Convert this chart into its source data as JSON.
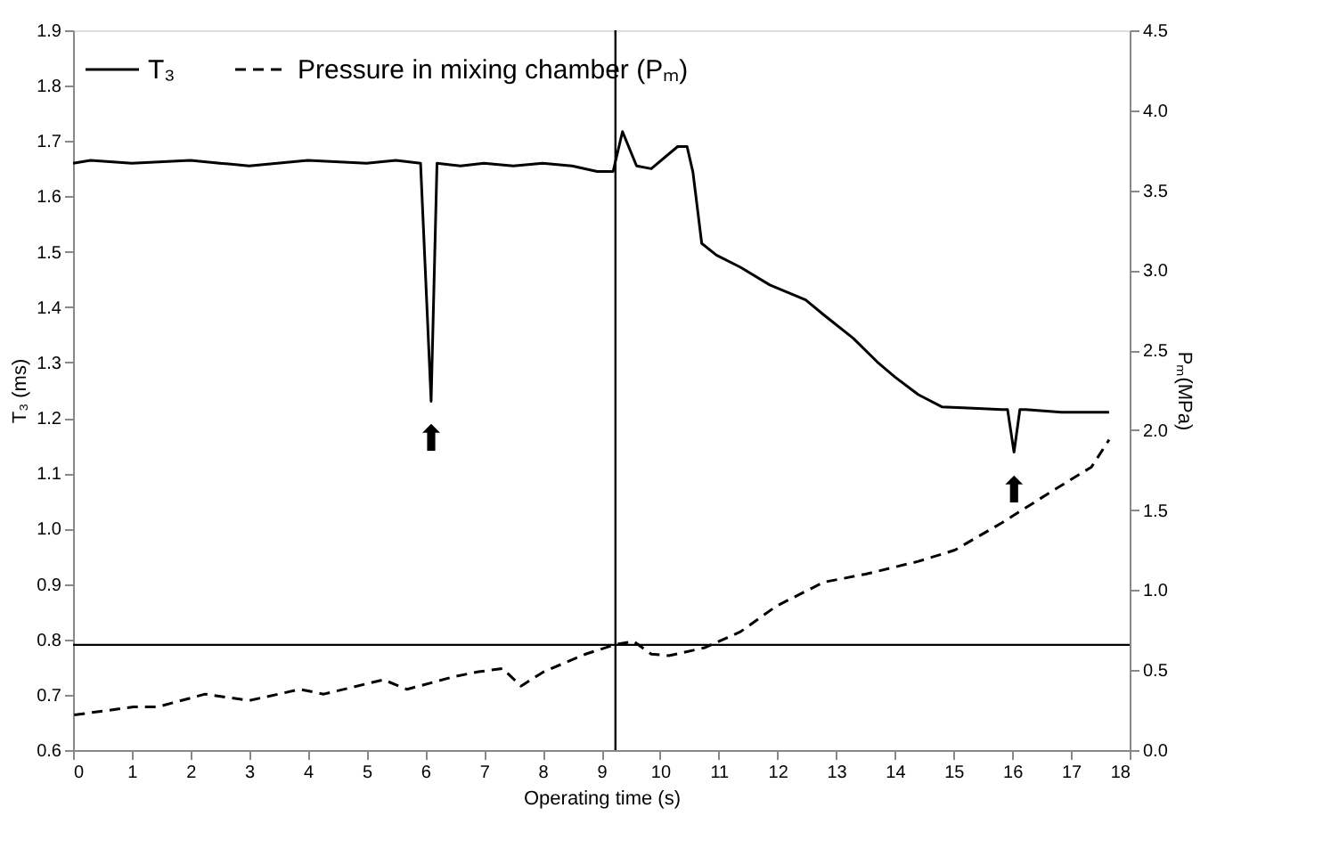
{
  "chart_data": {
    "type": "line",
    "xlabel": "Operating time (s)",
    "ylabel": "T₃ (ms)",
    "y2label": "Pₘ(MPa)",
    "xlim": [
      0,
      18
    ],
    "xticks": [
      0,
      1,
      2,
      3,
      4,
      5,
      6,
      7,
      8,
      9,
      10,
      11,
      12,
      13,
      14,
      15,
      16,
      17,
      18
    ],
    "ylim": [
      0.6,
      1.9
    ],
    "yticks": [
      {
        "value": 0.6,
        "label": "0.6"
      },
      {
        "value": 0.7,
        "label": "0.7"
      },
      {
        "value": 0.8,
        "label": "0.8"
      },
      {
        "value": 0.9,
        "label": "0.9"
      },
      {
        "value": 1.0,
        "label": "1.0"
      },
      {
        "value": 1.1,
        "label": "1.1"
      },
      {
        "value": 1.2,
        "label": "1.2"
      },
      {
        "value": 1.3,
        "label": "1.3"
      },
      {
        "value": 1.4,
        "label": "1.4"
      },
      {
        "value": 1.5,
        "label": "1.5"
      },
      {
        "value": 1.6,
        "label": "1.6"
      },
      {
        "value": 1.7,
        "label": "1.7"
      },
      {
        "value": 1.8,
        "label": "1.8"
      },
      {
        "value": 1.9,
        "label": "1.9"
      }
    ],
    "y2lim": [
      0,
      4.5
    ],
    "y2ticks": [
      {
        "value": 0,
        "label": "0.0"
      },
      {
        "value": 0.5,
        "label": "0.5"
      },
      {
        "value": 1,
        "label": "1.0"
      },
      {
        "value": 1.5,
        "label": "1.5"
      },
      {
        "value": 2,
        "label": "2.0"
      },
      {
        "value": 2.5,
        "label": "2.5"
      },
      {
        "value": 3,
        "label": "3.0"
      },
      {
        "value": 3.5,
        "label": "3.5"
      },
      {
        "value": 4,
        "label": "4.0"
      },
      {
        "value": 4.5,
        "label": "4.5"
      }
    ],
    "legend": "top left",
    "grid": false,
    "marker": "none",
    "series": [
      {
        "name": "T₃",
        "color": "#000000",
        "line_style": "solid",
        "x": [
          0,
          0.3,
          1,
          2,
          2.5,
          3,
          4,
          5,
          5.5,
          5.92,
          6.1,
          6.2,
          6.6,
          7,
          7.5,
          8,
          8.5,
          8.93,
          9.2,
          9.36,
          9.6,
          9.85,
          10.3,
          10.46,
          10.56,
          10.71,
          10.96,
          11.37,
          11.87,
          12.48,
          12.79,
          13.29,
          13.7,
          14.0,
          14.4,
          14.8,
          15.42,
          15.82,
          15.92,
          16.03,
          16.13,
          16.23,
          16.84,
          17.65
        ],
        "values": [
          1.66,
          1.665,
          1.66,
          1.665,
          1.66,
          1.655,
          1.665,
          1.66,
          1.665,
          1.66,
          1.23,
          1.66,
          1.655,
          1.66,
          1.655,
          1.66,
          1.655,
          1.645,
          1.645,
          1.717,
          1.655,
          1.65,
          1.69,
          1.69,
          1.644,
          1.515,
          1.494,
          1.472,
          1.44,
          1.413,
          1.386,
          1.344,
          1.301,
          1.274,
          1.242,
          1.22,
          1.217,
          1.215,
          1.215,
          1.138,
          1.215,
          1.215,
          1.21,
          1.21
        ]
      },
      {
        "name": "Pressure in mixing chamber (Pₘ)",
        "color": "#000000",
        "line_style": "dashed",
        "axis": "y2",
        "x": [
          0.02,
          1.03,
          1.44,
          2.25,
          3.0,
          3.87,
          4.27,
          5.29,
          5.69,
          6.5,
          6.91,
          7.32,
          7.63,
          8.02,
          8.73,
          9.24,
          9.55,
          9.85,
          10.15,
          10.76,
          11.37,
          11.98,
          12.79,
          13.5,
          14.4,
          15.02,
          15.82,
          16.64,
          17.35,
          17.65
        ],
        "values": [
          0.22,
          0.27,
          0.27,
          0.35,
          0.31,
          0.38,
          0.35,
          0.44,
          0.38,
          0.46,
          0.49,
          0.51,
          0.4,
          0.49,
          0.6,
          0.66,
          0.68,
          0.6,
          0.59,
          0.64,
          0.74,
          0.9,
          1.05,
          1.1,
          1.18,
          1.25,
          1.42,
          1.61,
          1.77,
          1.94
        ]
      }
    ],
    "ref_lines": [
      {
        "axis": "x",
        "value": 9.24,
        "color": "#000000"
      },
      {
        "axis": "y",
        "value": 0.79,
        "color": "#000000"
      }
    ],
    "annotations": [
      {
        "text": "⬆",
        "x": 6.1,
        "y": 1.23
      },
      {
        "text": "⬆",
        "x": 16.03,
        "y": 1.138
      }
    ]
  }
}
